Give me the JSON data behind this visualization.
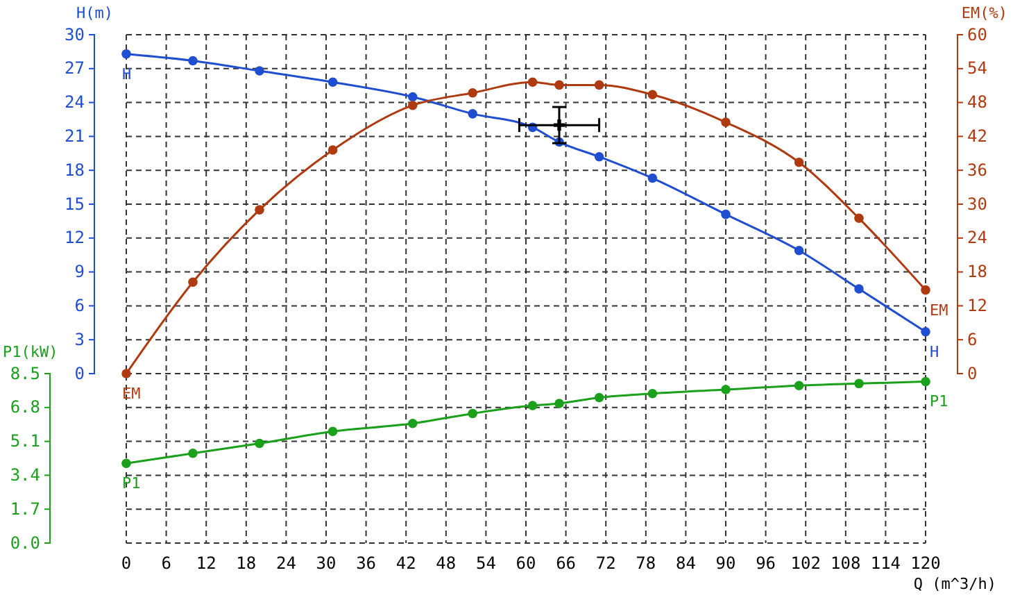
{
  "chart_data": {
    "type": "line",
    "xlabel": "Q (m^3/h)",
    "ylabel": "H(m)",
    "y2label": "EM(%)",
    "y3label": "P1(kW)",
    "x": [
      0,
      10,
      20,
      31,
      43,
      52,
      61,
      65,
      71,
      79,
      90,
      101,
      110,
      120
    ],
    "xlim": [
      0,
      120
    ],
    "xticks": [
      0,
      6,
      12,
      18,
      24,
      30,
      36,
      42,
      48,
      54,
      60,
      66,
      72,
      78,
      84,
      90,
      96,
      102,
      108,
      114,
      120
    ],
    "ylim": [
      -15,
      30
    ],
    "yticks": [
      0,
      3,
      6,
      9,
      12,
      15,
      18,
      21,
      24,
      27,
      30
    ],
    "y2lim": [
      -30,
      60
    ],
    "y2ticks": [
      0,
      6,
      12,
      18,
      24,
      30,
      36,
      42,
      48,
      54,
      60
    ],
    "y3lim": [
      0,
      25.5
    ],
    "y3ticks": [
      {
        "value": 0,
        "label": "0.0"
      },
      1.7,
      3.4,
      5.1,
      6.8,
      8.5
    ],
    "grid": true,
    "marker": "circle",
    "line_style": "solid",
    "series": [
      {
        "name": "H",
        "color": "#1f4fd0",
        "values": [
          28.3,
          27.7,
          26.8,
          25.8,
          24.5,
          23.0,
          21.8,
          20.5,
          19.2,
          17.3,
          14.1,
          10.9,
          7.5,
          3.7
        ]
      },
      {
        "name": "EM",
        "color": "#b03a10",
        "axis": "y2",
        "values": [
          0,
          16.2,
          29.0,
          39.6,
          47.5,
          49.7,
          51.6,
          51.1,
          51.1,
          49.4,
          44.5,
          37.4,
          27.5,
          14.8
        ]
      },
      {
        "name": "P1",
        "color": "#1aa01a",
        "axis": "y3",
        "values": [
          4.0,
          4.5,
          5.0,
          5.6,
          6.0,
          6.5,
          6.9,
          7.0,
          7.3,
          7.5,
          7.7,
          7.9,
          8.0,
          8.1
        ]
      },
      {
        "type": "scatter",
        "color": "#000000",
        "marker": "cross",
        "x": [
          65
        ],
        "values": [
          22.0
        ],
        "errors": [
          [
            20.4,
            23.6
          ]
        ],
        "xerrors": [
          [
            59,
            71
          ]
        ]
      }
    ]
  }
}
